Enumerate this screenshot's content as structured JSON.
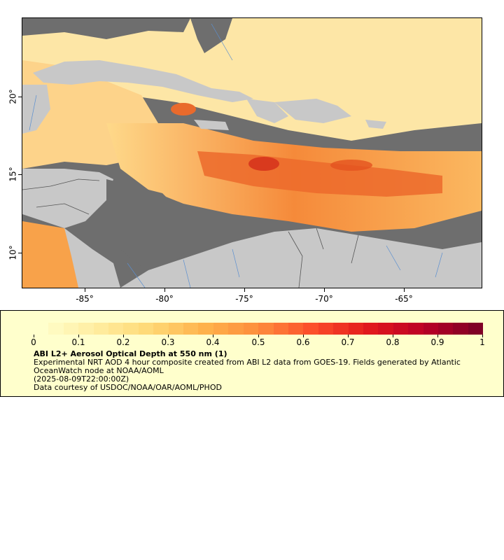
{
  "map": {
    "x_ticks": [
      "-85°",
      "-80°",
      "-75°",
      "-70°",
      "-65°"
    ],
    "y_ticks": [
      "20°",
      "15°",
      "10°"
    ]
  },
  "legend": {
    "colorbar_ticks": [
      "0",
      "0.1",
      "0.2",
      "0.3",
      "0.4",
      "0.5",
      "0.6",
      "0.7",
      "0.8",
      "0.9",
      "1"
    ],
    "title": "ABI L2+ Aerosol Optical Depth at 550 nm (1)",
    "description": "Experimental NRT AOD 4 hour composite created from ABI L2 data from GOES-19. Fields generated by Atlantic OceanWatch node at NOAA/AOML",
    "timestamp": "(2025-08-09T22:00:00Z)",
    "credit": "Data courtesy of USDOC/NOAA/OAR/AOML/PHOD"
  },
  "colors": {
    "land": "#c8c8c8",
    "masked_ocean": "#6e6e6e",
    "legend_background": "#ffffcc",
    "aod_low": "#ffffcc",
    "aod_high": "#800026"
  }
}
